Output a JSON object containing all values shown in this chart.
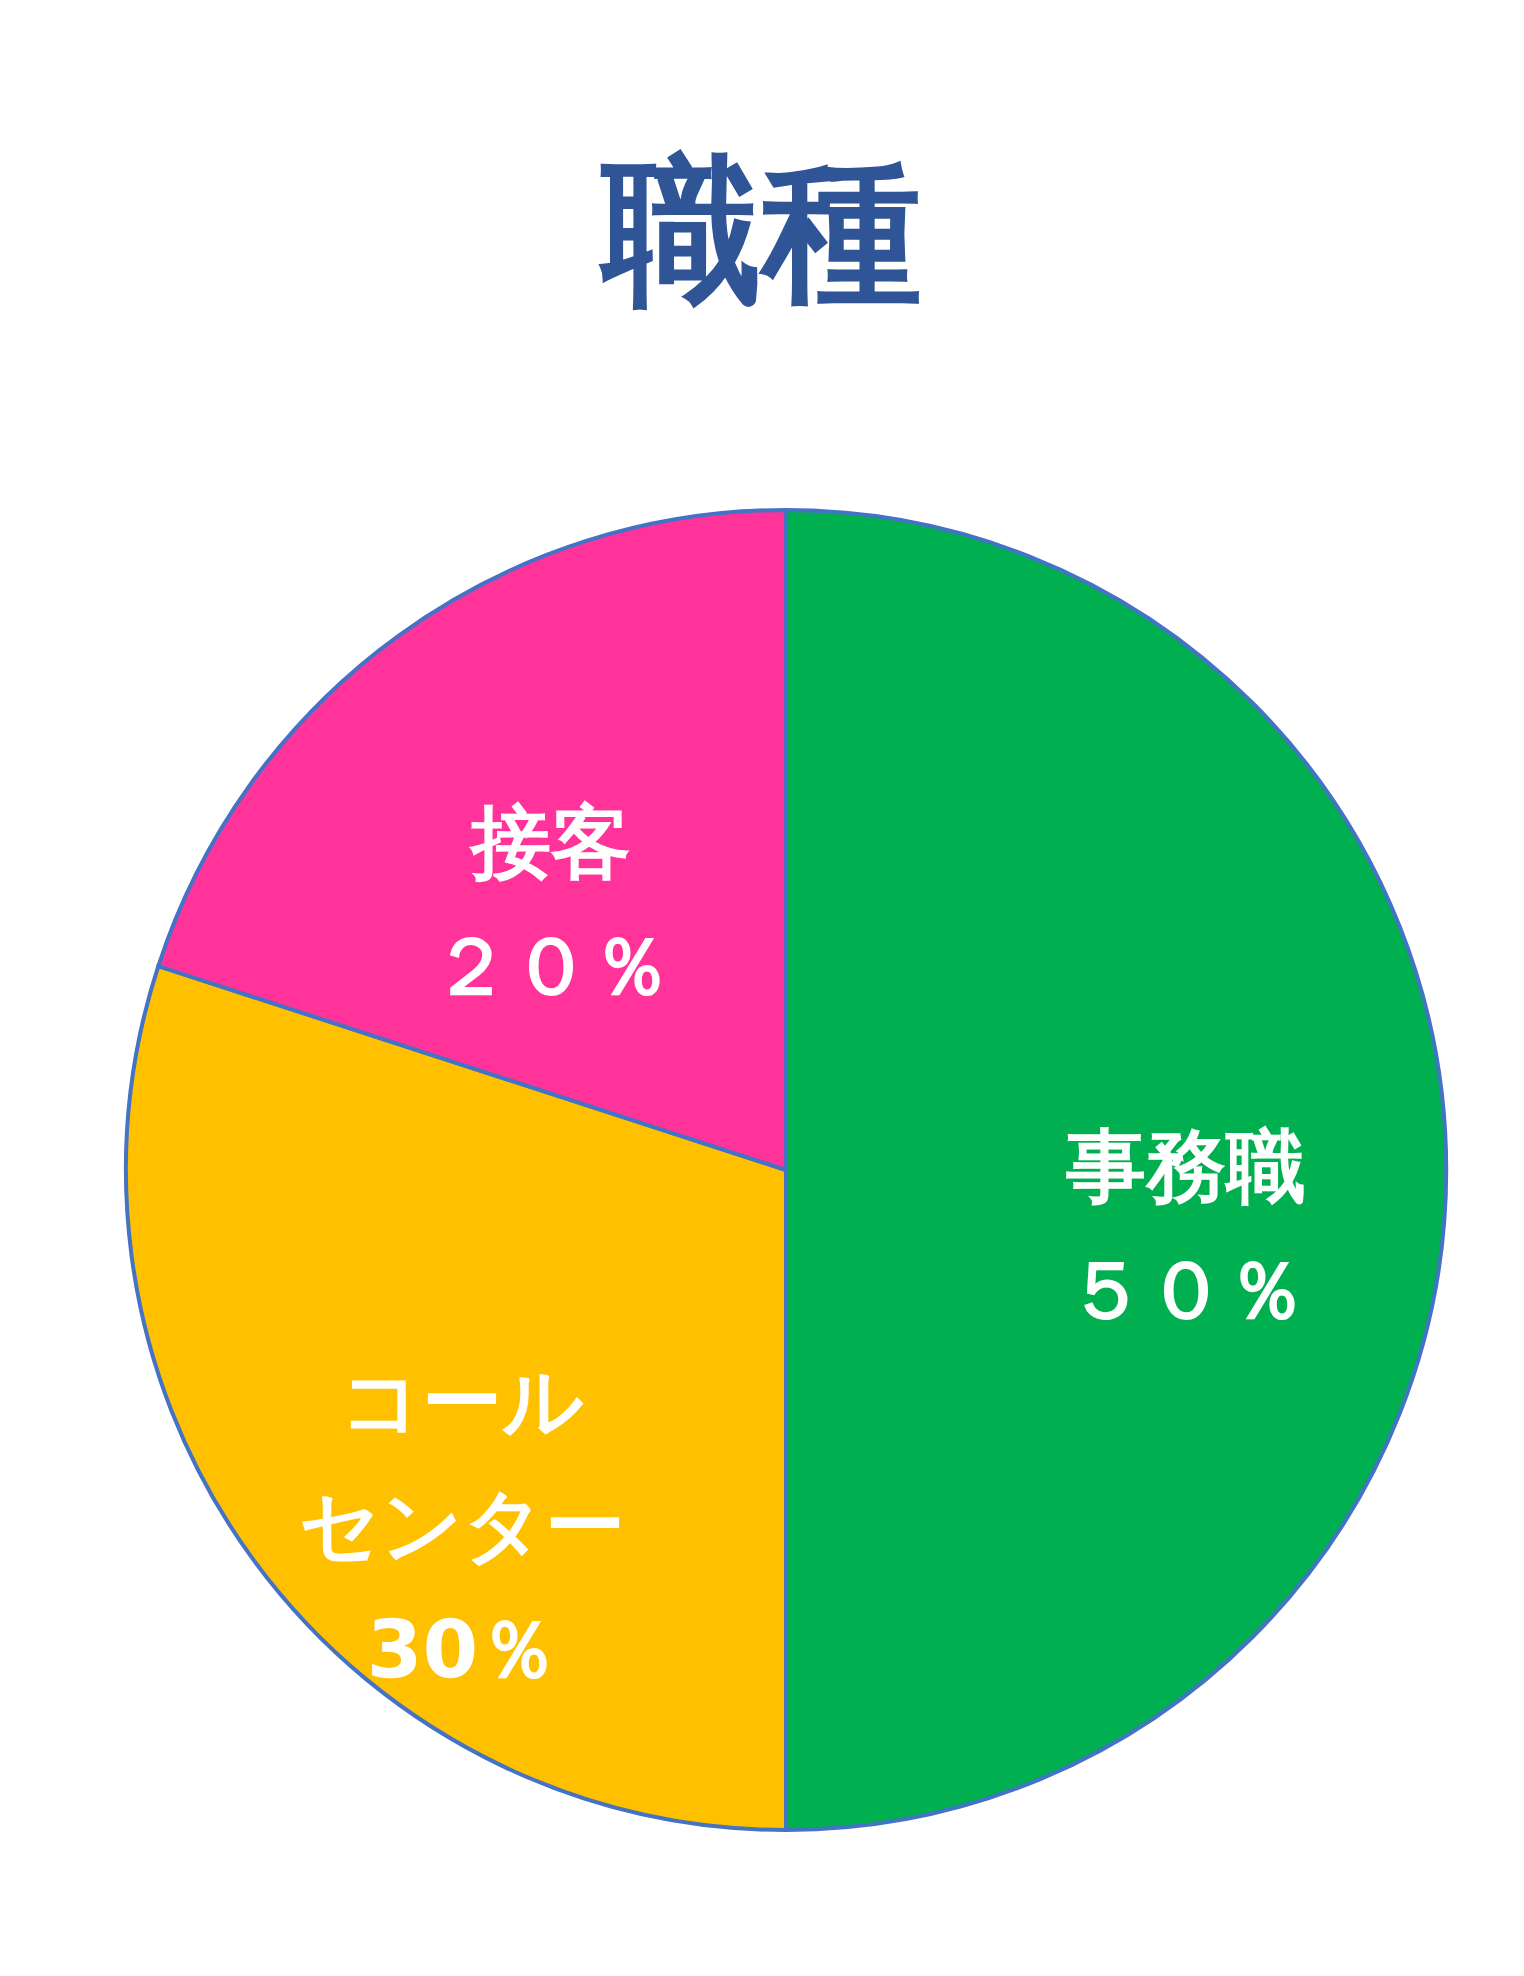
{
  "chart_data": {
    "type": "pie",
    "title": "職種",
    "categories": [
      "事務職",
      "コールセンター",
      "接客"
    ],
    "values": [
      50,
      30,
      20
    ],
    "colors": [
      "#00b050",
      "#ffc000",
      "#ff3399"
    ],
    "value_labels": [
      "５０％",
      "30％",
      "２０％"
    ],
    "legend": false
  }
}
